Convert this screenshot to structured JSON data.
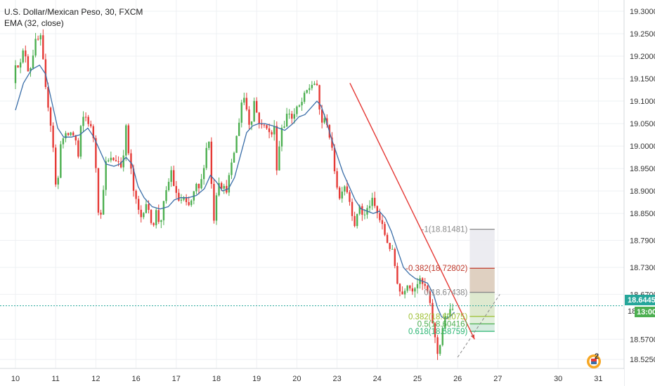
{
  "header": {
    "symbol_line": "U.S. Dollar/Mexican Peso, 30, FXCM",
    "indicator_line": "EMA (32, close)"
  },
  "price_tags": {
    "current": "18.64450",
    "partial_price": "18",
    "countdown": "13:00"
  },
  "calendar_badge": "2",
  "colors": {
    "up": "#4caf50",
    "down": "#e53935",
    "ema": "#3a6ea8",
    "trendline": "#e53935",
    "current_price": "#26a69a",
    "grid": "#eef0f3"
  },
  "chart_data": {
    "type": "candlestick",
    "title": "U.S. Dollar/Mexican Peso, 30, FXCM",
    "x_ticks": [
      {
        "label": "10",
        "day_index": 0
      },
      {
        "label": "11",
        "day_index": 1
      },
      {
        "label": "12",
        "day_index": 2
      },
      {
        "label": "16",
        "day_index": 3
      },
      {
        "label": "17",
        "day_index": 4
      },
      {
        "label": "18",
        "day_index": 5
      },
      {
        "label": "19",
        "day_index": 6
      },
      {
        "label": "20",
        "day_index": 7
      },
      {
        "label": "23",
        "day_index": 8
      },
      {
        "label": "24",
        "day_index": 9
      },
      {
        "label": "25",
        "day_index": 10
      },
      {
        "label": "26",
        "day_index": 11
      },
      {
        "label": "27",
        "day_index": 12
      },
      {
        "label": "30",
        "day_index": 13.5
      },
      {
        "label": "31",
        "day_index": 14.5
      }
    ],
    "y_ticks": [
      "19.30000",
      "19.25000",
      "19.20000",
      "19.15000",
      "19.10000",
      "19.05000",
      "19.00000",
      "18.95000",
      "18.90000",
      "18.85000",
      "18.79000",
      "18.73000",
      "18.67000",
      "18.57000",
      "18.52500"
    ],
    "y_range": [
      18.505,
      19.325
    ],
    "price_path": [
      [
        0.0,
        19.14
      ],
      [
        0.08,
        19.2
      ],
      [
        0.16,
        19.17
      ],
      [
        0.28,
        19.22
      ],
      [
        0.4,
        19.16
      ],
      [
        0.55,
        19.23
      ],
      [
        0.7,
        19.24
      ],
      [
        0.8,
        19.13
      ],
      [
        0.9,
        19.08
      ],
      [
        1.0,
        19.0
      ],
      [
        1.05,
        18.92
      ],
      [
        1.1,
        18.89
      ],
      [
        1.18,
        19.01
      ],
      [
        1.3,
        19.02
      ],
      [
        1.45,
        19.03
      ],
      [
        1.55,
        19.02
      ],
      [
        1.62,
        18.97
      ],
      [
        1.7,
        19.05
      ],
      [
        1.78,
        19.07
      ],
      [
        1.9,
        19.05
      ],
      [
        2.0,
        19.02
      ],
      [
        2.1,
        18.92
      ],
      [
        2.15,
        18.8
      ],
      [
        2.2,
        18.86
      ],
      [
        2.3,
        18.96
      ],
      [
        2.45,
        18.97
      ],
      [
        2.6,
        18.97
      ],
      [
        2.72,
        18.95
      ],
      [
        2.8,
        19.05
      ],
      [
        2.88,
        18.98
      ],
      [
        2.96,
        18.93
      ],
      [
        3.0,
        18.9
      ],
      [
        3.1,
        18.86
      ],
      [
        3.2,
        18.84
      ],
      [
        3.3,
        18.88
      ],
      [
        3.4,
        18.84
      ],
      [
        3.5,
        18.83
      ],
      [
        3.58,
        18.86
      ],
      [
        3.65,
        18.82
      ],
      [
        3.75,
        18.87
      ],
      [
        3.85,
        18.91
      ],
      [
        3.95,
        18.95
      ],
      [
        4.02,
        18.9
      ],
      [
        4.1,
        18.88
      ],
      [
        4.25,
        18.88
      ],
      [
        4.35,
        18.86
      ],
      [
        4.45,
        18.88
      ],
      [
        4.55,
        18.91
      ],
      [
        4.65,
        18.9
      ],
      [
        4.75,
        18.96
      ],
      [
        4.82,
        19.0
      ],
      [
        4.9,
        19.02
      ],
      [
        4.95,
        18.88
      ],
      [
        5.0,
        18.84
      ],
      [
        5.1,
        18.93
      ],
      [
        5.2,
        18.91
      ],
      [
        5.3,
        18.9
      ],
      [
        5.45,
        18.96
      ],
      [
        5.6,
        19.04
      ],
      [
        5.72,
        19.12
      ],
      [
        5.82,
        19.08
      ],
      [
        5.9,
        19.04
      ],
      [
        6.0,
        19.1
      ],
      [
        6.1,
        19.06
      ],
      [
        6.2,
        19.04
      ],
      [
        6.3,
        19.05
      ],
      [
        6.4,
        19.02
      ],
      [
        6.5,
        19.04
      ],
      [
        6.58,
        18.93
      ],
      [
        6.65,
        19.04
      ],
      [
        6.75,
        19.05
      ],
      [
        6.85,
        19.08
      ],
      [
        6.95,
        19.06
      ],
      [
        7.05,
        19.08
      ],
      [
        7.15,
        19.09
      ],
      [
        7.3,
        19.12
      ],
      [
        7.45,
        19.14
      ],
      [
        7.55,
        19.14
      ],
      [
        7.6,
        19.09
      ],
      [
        7.7,
        19.05
      ],
      [
        7.8,
        19.06
      ],
      [
        7.9,
        19.01
      ],
      [
        8.0,
        18.95
      ],
      [
        8.05,
        18.92
      ],
      [
        8.12,
        18.88
      ],
      [
        8.22,
        18.92
      ],
      [
        8.32,
        18.9
      ],
      [
        8.42,
        18.86
      ],
      [
        8.52,
        18.82
      ],
      [
        8.62,
        18.87
      ],
      [
        8.72,
        18.84
      ],
      [
        8.82,
        18.86
      ],
      [
        8.92,
        18.88
      ],
      [
        9.02,
        18.86
      ],
      [
        9.15,
        18.83
      ],
      [
        9.3,
        18.79
      ],
      [
        9.45,
        18.76
      ],
      [
        9.6,
        18.68
      ],
      [
        9.7,
        18.67
      ],
      [
        9.8,
        18.7
      ],
      [
        9.9,
        18.68
      ],
      [
        10.0,
        18.69
      ],
      [
        10.1,
        18.7
      ],
      [
        10.2,
        18.69
      ],
      [
        10.3,
        18.68
      ],
      [
        10.42,
        18.62
      ],
      [
        10.5,
        18.57
      ],
      [
        10.58,
        18.53
      ],
      [
        10.65,
        18.58
      ],
      [
        10.72,
        18.61
      ],
      [
        10.82,
        18.625
      ],
      [
        10.92,
        18.635
      ]
    ],
    "ema_path": [
      [
        0.0,
        19.08
      ],
      [
        0.2,
        19.14
      ],
      [
        0.4,
        19.17
      ],
      [
        0.6,
        19.18
      ],
      [
        0.75,
        19.16
      ],
      [
        0.9,
        19.1
      ],
      [
        1.05,
        19.04
      ],
      [
        1.2,
        19.02
      ],
      [
        1.4,
        19.02
      ],
      [
        1.6,
        19.025
      ],
      [
        1.8,
        19.04
      ],
      [
        1.95,
        19.02
      ],
      [
        2.1,
        18.99
      ],
      [
        2.25,
        18.96
      ],
      [
        2.45,
        18.955
      ],
      [
        2.6,
        18.96
      ],
      [
        2.75,
        18.975
      ],
      [
        2.9,
        18.96
      ],
      [
        3.05,
        18.91
      ],
      [
        3.2,
        18.885
      ],
      [
        3.4,
        18.865
      ],
      [
        3.6,
        18.86
      ],
      [
        3.8,
        18.865
      ],
      [
        3.95,
        18.88
      ],
      [
        4.1,
        18.885
      ],
      [
        4.3,
        18.885
      ],
      [
        4.5,
        18.89
      ],
      [
        4.7,
        18.905
      ],
      [
        4.85,
        18.935
      ],
      [
        5.0,
        18.92
      ],
      [
        5.15,
        18.9
      ],
      [
        5.3,
        18.905
      ],
      [
        5.45,
        18.93
      ],
      [
        5.6,
        18.98
      ],
      [
        5.75,
        19.03
      ],
      [
        5.9,
        19.045
      ],
      [
        6.05,
        19.05
      ],
      [
        6.2,
        19.05
      ],
      [
        6.4,
        19.045
      ],
      [
        6.55,
        19.04
      ],
      [
        6.7,
        19.035
      ],
      [
        6.9,
        19.05
      ],
      [
        7.05,
        19.065
      ],
      [
        7.2,
        19.07
      ],
      [
        7.35,
        19.085
      ],
      [
        7.5,
        19.1
      ],
      [
        7.6,
        19.09
      ],
      [
        7.72,
        19.06
      ],
      [
        7.85,
        19.02
      ],
      [
        8.0,
        18.98
      ],
      [
        8.15,
        18.94
      ],
      [
        8.3,
        18.91
      ],
      [
        8.45,
        18.88
      ],
      [
        8.6,
        18.86
      ],
      [
        8.75,
        18.855
      ],
      [
        8.9,
        18.85
      ],
      [
        9.05,
        18.855
      ],
      [
        9.2,
        18.84
      ],
      [
        9.35,
        18.81
      ],
      [
        9.5,
        18.77
      ],
      [
        9.65,
        18.73
      ],
      [
        9.8,
        18.715
      ],
      [
        9.95,
        18.705
      ],
      [
        10.1,
        18.7
      ],
      [
        10.25,
        18.695
      ],
      [
        10.4,
        18.67
      ],
      [
        10.5,
        18.64
      ],
      [
        10.6,
        18.62
      ],
      [
        10.7,
        18.615
      ],
      [
        10.8,
        18.62
      ],
      [
        10.92,
        18.63
      ]
    ],
    "current_price": 18.6445,
    "trendline": {
      "from": [
        8.32,
        19.14
      ],
      "to": [
        11.42,
        18.57
      ]
    },
    "fib_levels": [
      {
        "label": "-1(18.81481)",
        "value": 18.81481
      },
      {
        "label": "-0.382(18.72802)",
        "value": 18.72802
      },
      {
        "label": "0(18.67438)",
        "value": 18.67438
      },
      {
        "label": "0.382(18.62075)",
        "value": 18.62075
      },
      {
        "label": "0.5(18.60416)",
        "value": 18.60416
      },
      {
        "label": "0.618(18.58759)",
        "value": 18.58759
      }
    ],
    "fib_x_range": [
      11.3,
      11.92
    ],
    "projection": {
      "from": [
        11.0,
        18.53
      ],
      "to": [
        12.05,
        18.67
      ]
    }
  }
}
